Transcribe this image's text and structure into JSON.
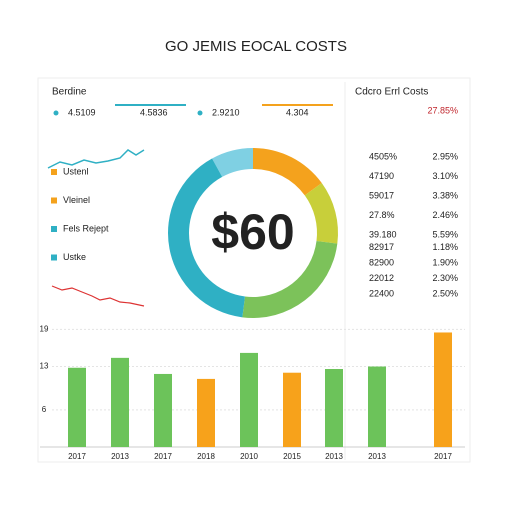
{
  "title": "GO JEMIS EOCAL COSTS",
  "kpi_label": "Berdine",
  "kpis": [
    "4.5109",
    "4.5836",
    "2.9210",
    "4.304"
  ],
  "legend": [
    "Ustenl",
    "Vleinel",
    "Fels Rejept",
    "Ustke"
  ],
  "table": {
    "title": "Cdcro Errl Costs",
    "highlight": "27.85%",
    "rows": [
      [
        "4505%",
        "2.95%"
      ],
      [
        "47190",
        "3.10%"
      ],
      [
        "59017",
        "3.38%"
      ],
      [
        "27.8%",
        "2.46%"
      ],
      [
        "39.180",
        "5.59%"
      ],
      [
        "82917",
        "1.18%"
      ],
      [
        "82900",
        "1.90%"
      ],
      [
        "22012",
        "2.30%"
      ],
      [
        "22400",
        "2.50%"
      ]
    ]
  },
  "chart_data": [
    {
      "type": "donut",
      "center_label": "$60",
      "values": [
        8,
        15,
        12,
        25,
        40
      ],
      "colors": [
        "#7fd0e3",
        "#f4a21d",
        "#c8cf3a",
        "#7cc25a",
        "#2fb0c4"
      ]
    },
    {
      "type": "bar",
      "categories": [
        "2017",
        "2013",
        "2017",
        "2018",
        "2010",
        "2015",
        "2013",
        "2013",
        "2017"
      ],
      "values": [
        12.8,
        14.4,
        11.8,
        11,
        15.2,
        12,
        12.6,
        13,
        18.5
      ],
      "colors": [
        "#6cc35a",
        "#6cc35a",
        "#6cc35a",
        "#f7a21b",
        "#6cc35a",
        "#f7a21b",
        "#6cc35a",
        "#6cc35a",
        "#f7a21b"
      ],
      "ylim": [
        0,
        21
      ],
      "yticks": [
        6,
        13,
        19
      ],
      "grid": true
    }
  ]
}
